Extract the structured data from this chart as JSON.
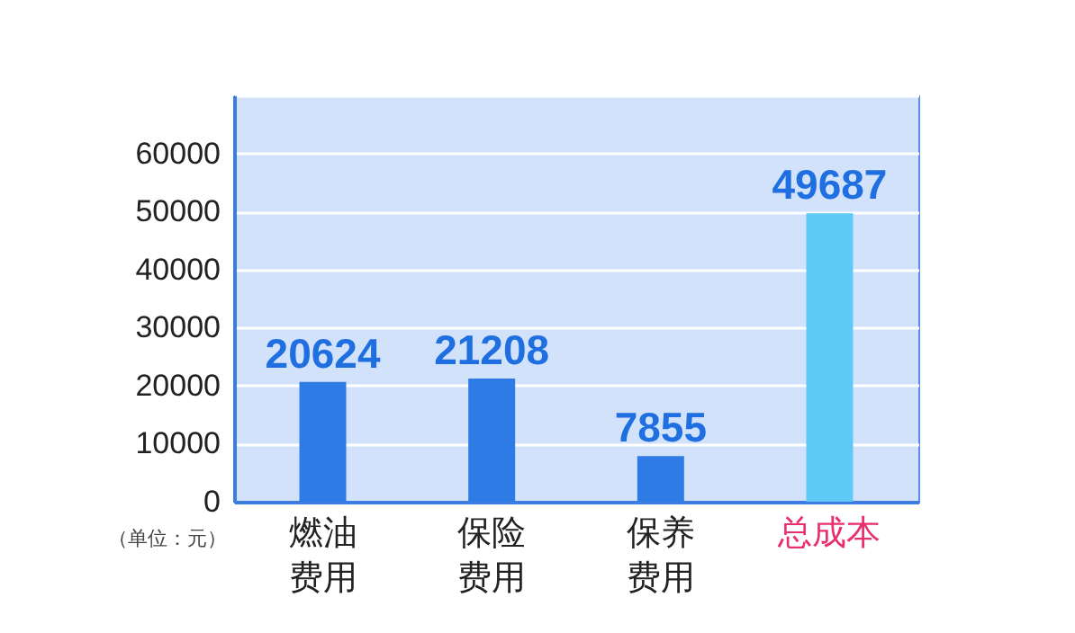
{
  "chart_data": {
    "type": "bar",
    "categories": [
      "燃油费用",
      "保险费用",
      "保养费用",
      "总成本"
    ],
    "values": [
      20624,
      21208,
      7855,
      49687
    ],
    "colors": [
      "#2f7be6",
      "#2f7be6",
      "#2f7be6",
      "#5ec9f4"
    ],
    "ylim": [
      0,
      70000
    ],
    "yticks": [
      0,
      10000,
      20000,
      30000,
      40000,
      50000,
      60000,
      {
        "value": 70000,
        "label": null
      }
    ],
    "grid": "y",
    "data_labels": true,
    "legend": false,
    "annotations": [
      "（单位：元）"
    ]
  }
}
